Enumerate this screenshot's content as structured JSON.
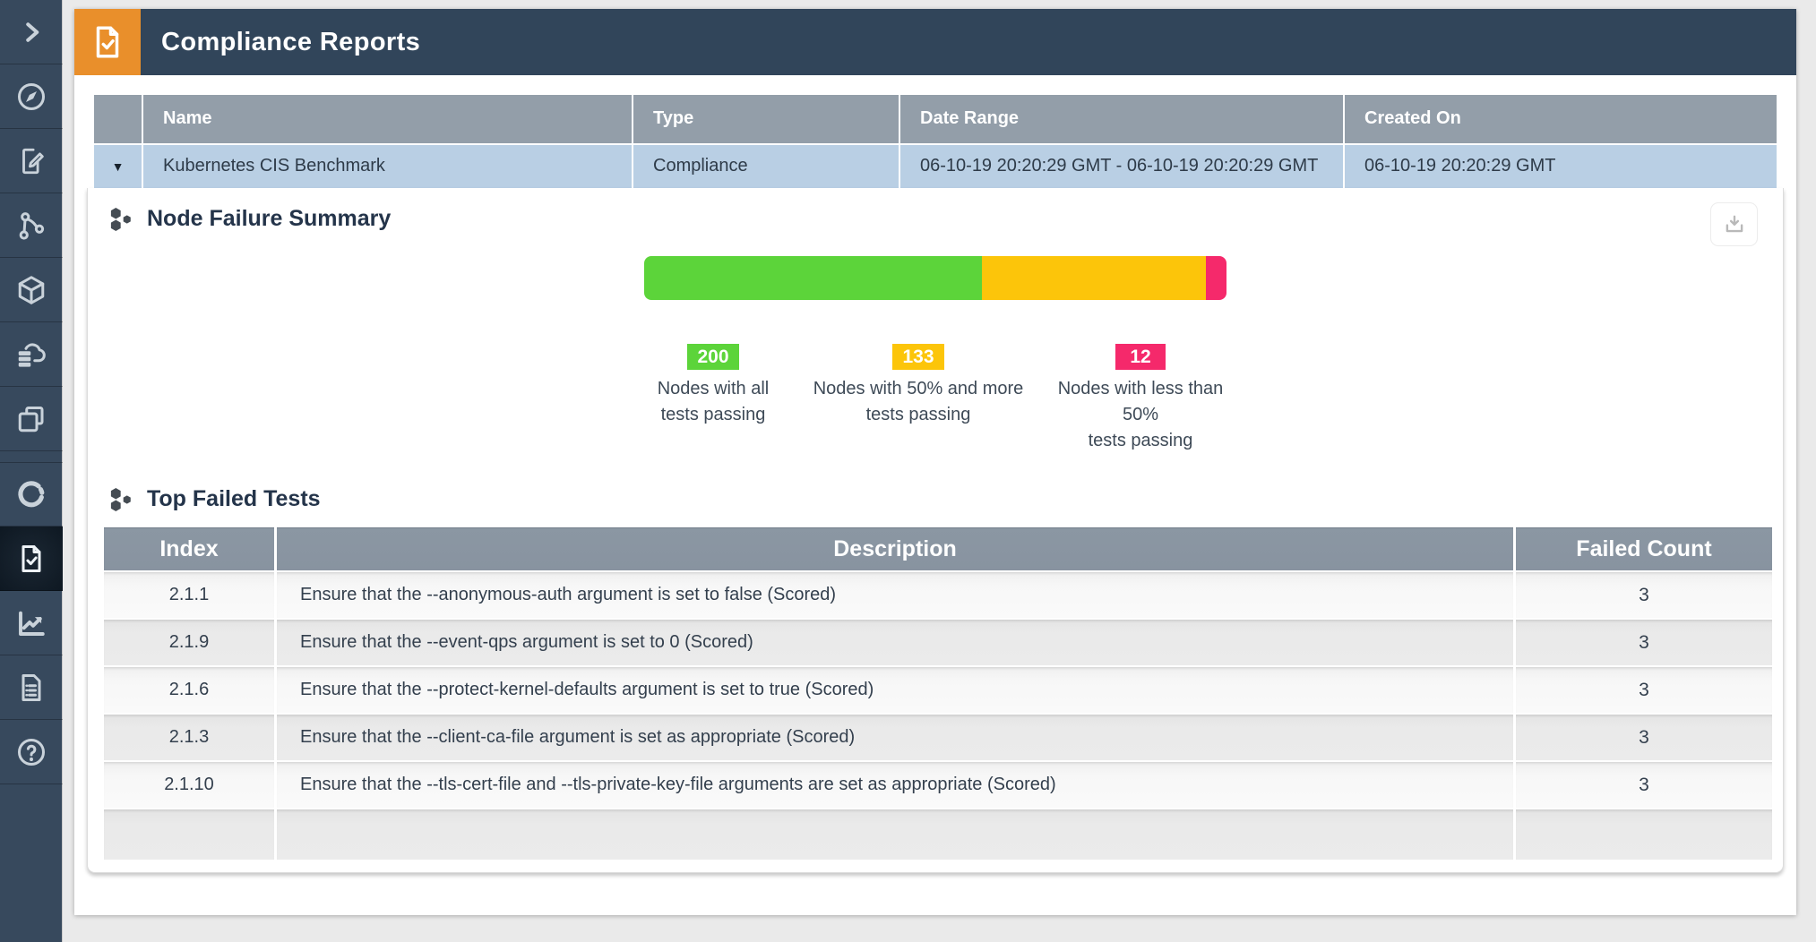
{
  "theme": {
    "accent_orange": "#e98f2b",
    "header_navy": "#31455a",
    "sidebar_navy": "#37495d",
    "table_header_gray": "#939ea9",
    "row_blue": "#b9cfe4",
    "green": "#5cd43a",
    "yellow": "#fcc50a",
    "pink": "#f5296b"
  },
  "sidebar": {
    "items": [
      {
        "icon": "chevron-right-icon",
        "active": false
      },
      {
        "icon": "compass-icon",
        "active": false
      },
      {
        "icon": "document-edit-icon",
        "active": false
      },
      {
        "icon": "network-graph-icon",
        "active": false
      },
      {
        "icon": "cube-icon",
        "active": false
      },
      {
        "icon": "cloud-database-icon",
        "active": false
      },
      {
        "icon": "layers-icon",
        "active": false
      },
      {
        "icon": "refresh-icon",
        "active": false
      },
      {
        "icon": "document-check-icon",
        "active": true
      },
      {
        "icon": "line-chart-icon",
        "active": false
      },
      {
        "icon": "clipboard-list-icon",
        "active": false
      },
      {
        "icon": "help-circle-icon",
        "active": false
      }
    ]
  },
  "header": {
    "title": "Compliance Reports",
    "icon": "document-check-icon"
  },
  "report_table": {
    "columns": [
      "Name",
      "Type",
      "Date Range",
      "Created On"
    ],
    "expander_glyph": "▼",
    "row": {
      "name": "Kubernetes CIS Benchmark",
      "type": "Compliance",
      "date_range": "06-10-19 20:20:29 GMT - 06-10-19 20:20:29 GMT",
      "created_on": "06-10-19 20:20:29 GMT"
    }
  },
  "node_failure_summary": {
    "title": "Node Failure Summary",
    "legend": [
      {
        "line1": "Nodes with all",
        "line2": "tests passing"
      },
      {
        "line1": "Nodes with 50% and more",
        "line2": "tests passing"
      },
      {
        "line1": "Nodes with less than 50%",
        "line2": "tests passing"
      }
    ]
  },
  "chart_data": {
    "type": "bar",
    "subtype": "stacked-horizontal",
    "title": "Node Failure Summary",
    "total": 345,
    "series": [
      {
        "name": "Nodes with all tests passing",
        "value": 200,
        "color": "#5cd43a"
      },
      {
        "name": "Nodes with 50% and more tests passing",
        "value": 133,
        "color": "#fcc50a"
      },
      {
        "name": "Nodes with less than 50% tests passing",
        "value": 12,
        "color": "#f5296b"
      }
    ]
  },
  "top_failed_tests": {
    "title": "Top Failed Tests",
    "columns": [
      "Index",
      "Description",
      "Failed Count"
    ],
    "rows": [
      {
        "index": "2.1.1",
        "description": "Ensure that the --anonymous-auth argument is set to false (Scored)",
        "failed_count": "3"
      },
      {
        "index": "2.1.9",
        "description": "Ensure that the --event-qps argument is set to 0 (Scored)",
        "failed_count": "3"
      },
      {
        "index": "2.1.6",
        "description": "Ensure that the --protect-kernel-defaults argument is set to true (Scored)",
        "failed_count": "3"
      },
      {
        "index": "2.1.3",
        "description": "Ensure that the --client-ca-file argument is set as appropriate (Scored)",
        "failed_count": "3"
      },
      {
        "index": "2.1.10",
        "description": "Ensure that the --tls-cert-file and --tls-private-key-file arguments are set as appropriate (Scored)",
        "failed_count": "3"
      }
    ]
  }
}
